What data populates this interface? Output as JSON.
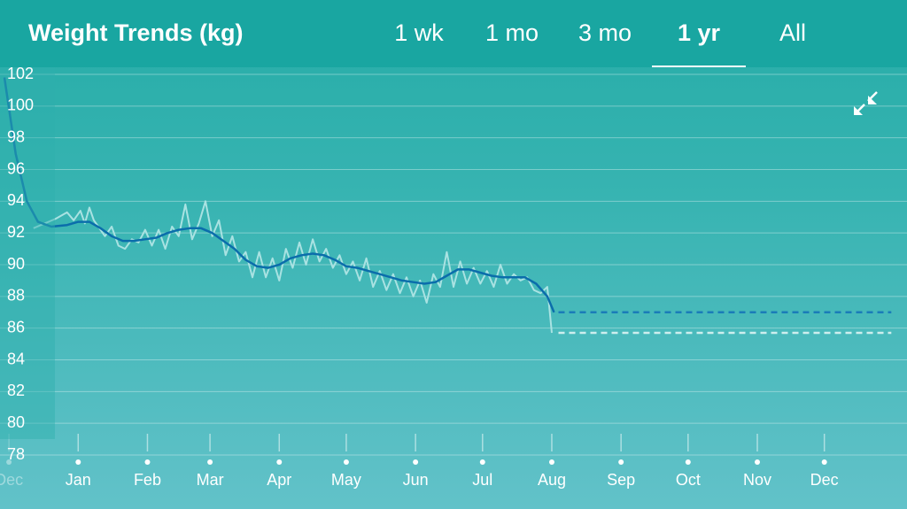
{
  "header": {
    "title": "Weight Trends (kg)",
    "tabs": [
      "1 wk",
      "1 mo",
      "3 mo",
      "1 yr",
      "All"
    ],
    "selected_tab": 3
  },
  "chart_data": {
    "type": "line",
    "xlim": [
      -35,
      371
    ],
    "xticks": [
      {
        "value": -31,
        "label": "Dec"
      },
      {
        "value": 0,
        "label": "Jan"
      },
      {
        "value": 31,
        "label": "Feb"
      },
      {
        "value": 59,
        "label": "Mar"
      },
      {
        "value": 90,
        "label": "Apr"
      },
      {
        "value": 120,
        "label": "May"
      },
      {
        "value": 151,
        "label": "Jun"
      },
      {
        "value": 181,
        "label": "Jul"
      },
      {
        "value": 212,
        "label": "Aug"
      },
      {
        "value": 243,
        "label": "Sep"
      },
      {
        "value": 273,
        "label": "Oct"
      },
      {
        "value": 304,
        "label": "Nov"
      },
      {
        "value": 334,
        "label": "Dec"
      }
    ],
    "ylim": [
      78,
      102
    ],
    "yticks": [
      78,
      80,
      82,
      84,
      86,
      88,
      90,
      92,
      94,
      96,
      98,
      100,
      102
    ],
    "grid": true,
    "series": [
      {
        "color": "#a9e2e2",
        "width": 2,
        "x": [
          -20,
          -15,
          -10,
          -5,
          -2,
          1,
          3,
          5,
          7,
          9,
          12,
          15,
          18,
          21,
          24,
          27,
          30,
          33,
          36,
          39,
          42,
          45,
          48,
          51,
          54,
          57,
          60,
          63,
          66,
          69,
          72,
          75,
          78,
          81,
          84,
          87,
          90,
          93,
          96,
          99,
          102,
          105,
          108,
          111,
          114,
          117,
          120,
          123,
          126,
          129,
          132,
          135,
          138,
          141,
          144,
          147,
          150,
          153,
          156,
          159,
          162,
          165,
          168,
          171,
          174,
          177,
          180,
          183,
          186,
          189,
          192,
          195,
          198,
          201,
          204,
          207,
          210,
          212
        ],
        "values": [
          92.3,
          92.6,
          92.9,
          93.3,
          92.8,
          93.4,
          92.6,
          93.6,
          92.8,
          92.4,
          91.8,
          92.4,
          91.2,
          91.0,
          91.6,
          91.4,
          92.2,
          91.2,
          92.2,
          91.0,
          92.4,
          91.8,
          93.8,
          91.6,
          92.6,
          94.0,
          91.8,
          92.8,
          90.6,
          91.8,
          90.2,
          90.8,
          89.2,
          90.8,
          89.2,
          90.4,
          89.0,
          91.0,
          89.8,
          91.4,
          90.0,
          91.6,
          90.2,
          91.0,
          89.8,
          90.6,
          89.4,
          90.2,
          89.0,
          90.4,
          88.6,
          89.6,
          88.4,
          89.4,
          88.2,
          89.2,
          88.0,
          89.0,
          87.6,
          89.4,
          88.6,
          90.8,
          88.6,
          90.2,
          88.8,
          89.8,
          88.8,
          89.6,
          88.6,
          90.0,
          88.8,
          89.4,
          89.0,
          89.2,
          88.4,
          88.2,
          88.6,
          85.7
        ]
      },
      {
        "color": "#0b6dab",
        "width": 2.5,
        "x": [
          -33,
          -28,
          -23,
          -18,
          -12,
          -5,
          0,
          5,
          10,
          15,
          20,
          25,
          30,
          35,
          40,
          45,
          50,
          55,
          60,
          65,
          70,
          75,
          80,
          85,
          90,
          95,
          100,
          105,
          110,
          115,
          120,
          125,
          130,
          135,
          140,
          145,
          150,
          155,
          160,
          165,
          170,
          175,
          180,
          185,
          190,
          195,
          200,
          205,
          210,
          213
        ],
        "values": [
          101.8,
          97,
          94,
          92.7,
          92.4,
          92.5,
          92.7,
          92.7,
          92.3,
          91.8,
          91.5,
          91.5,
          91.6,
          91.7,
          92.0,
          92.2,
          92.3,
          92.3,
          92.0,
          91.5,
          91.0,
          90.3,
          89.9,
          89.8,
          90.0,
          90.4,
          90.6,
          90.7,
          90.6,
          90.3,
          89.9,
          89.8,
          89.6,
          89.4,
          89.2,
          89.0,
          88.9,
          88.8,
          88.9,
          89.3,
          89.7,
          89.7,
          89.5,
          89.3,
          89.2,
          89.2,
          89.2,
          88.8,
          88.0,
          87.0
        ]
      },
      {
        "color": "#1a7cb8",
        "width": 2.5,
        "dashed": true,
        "x": [
          215,
          364
        ],
        "values": [
          87,
          87
        ]
      },
      {
        "color": "#cdeeee",
        "width": 2.5,
        "dashed": true,
        "x": [
          215,
          364
        ],
        "values": [
          85.7,
          85.7
        ]
      }
    ]
  }
}
